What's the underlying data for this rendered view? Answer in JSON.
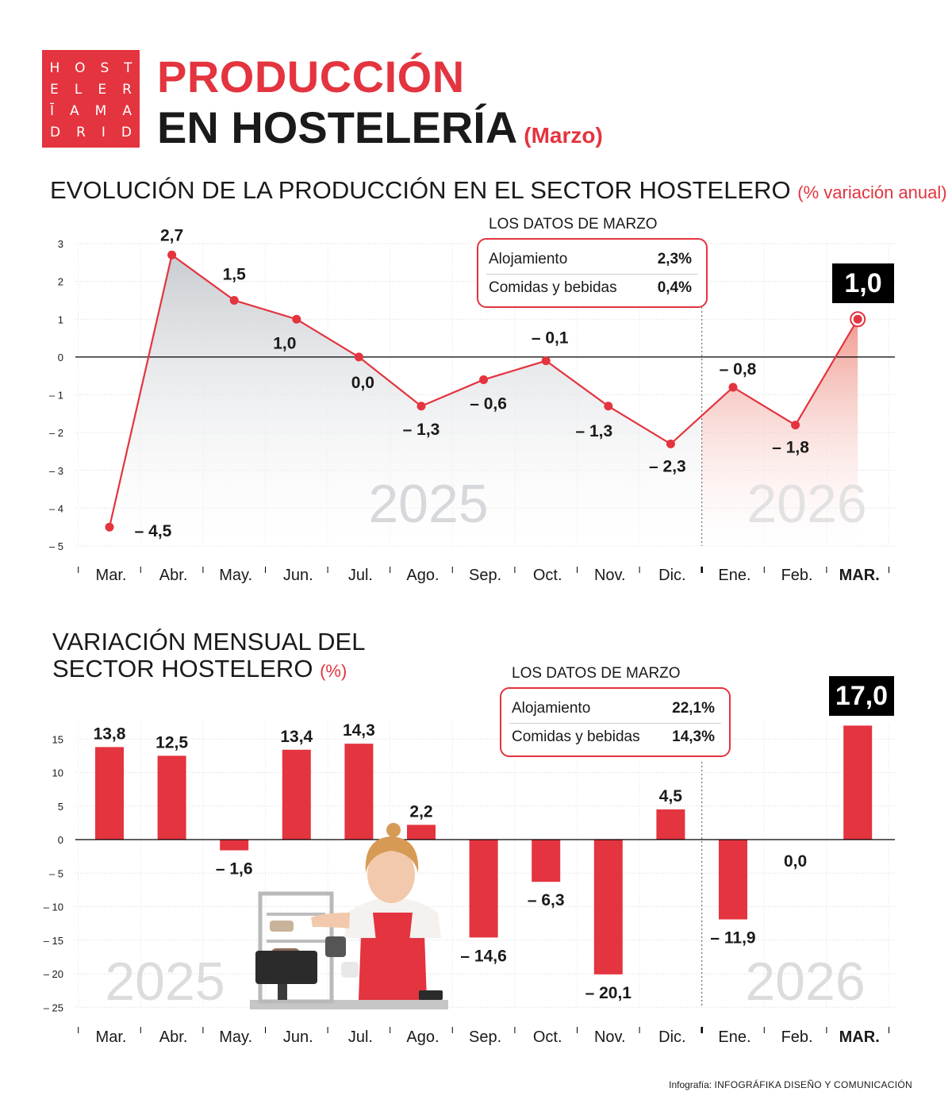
{
  "logo": {
    "rows": [
      [
        "H",
        "O",
        "S",
        "T"
      ],
      [
        "E",
        "L",
        "E",
        "R"
      ],
      [
        "Ī",
        "A",
        "M",
        "A"
      ],
      [
        "D",
        "R",
        "I",
        "D"
      ]
    ]
  },
  "header": {
    "title_line1": "PRODUCCIÓN",
    "title_line2": "EN HOSTELERÍA",
    "title_sub": "(Marzo)"
  },
  "section1": {
    "title": "EVOLUCIÓN DE LA PRODUCCIÓN EN EL SECTOR HOSTELERO",
    "unit": "(% variación anual)",
    "databox": {
      "title": "LOS DATOS DE MARZO",
      "rows": [
        {
          "label": "Alojamiento",
          "value": "2,3%"
        },
        {
          "label": "Comidas y bebidas",
          "value": "0,4%"
        }
      ]
    },
    "big_value": "1,0"
  },
  "section2": {
    "title_line1": "VARIACIÓN MENSUAL DEL",
    "title_line2": "SECTOR HOSTELERO",
    "unit": "(%)",
    "databox": {
      "title": "LOS DATOS DE MARZO",
      "rows": [
        {
          "label": "Alojamiento",
          "value": "22,1%"
        },
        {
          "label": "Comidas y bebidas",
          "value": "14,3%"
        }
      ]
    },
    "big_value": "17,0"
  },
  "credit": {
    "prefix": "Infografía:",
    "name": "INFOGRÁFIKA DISEÑO Y COMUNICACIÓN"
  },
  "colors": {
    "accent": "#e3343f",
    "area_2025": "#d4d7db",
    "area_2026": "#f3b3ab",
    "black": "#000000"
  },
  "chart_data": [
    {
      "type": "area",
      "title": "EVOLUCIÓN DE LA PRODUCCIÓN EN EL SECTOR HOSTELERO",
      "categories": [
        "Mar.",
        "Abr.",
        "May.",
        "Jun.",
        "Jul.",
        "Ago.",
        "Sep.",
        "Oct.",
        "Nov.",
        "Dic.",
        "Ene.",
        "Feb.",
        "MAR."
      ],
      "values": [
        -4.5,
        2.7,
        1.5,
        1.0,
        0.0,
        -1.3,
        -0.6,
        -0.1,
        -1.3,
        -2.3,
        -0.8,
        -1.8,
        1.0
      ],
      "labels": [
        "– 4,5",
        "2,7",
        "1,5",
        "1,0",
        "0,0",
        "– 1,3",
        "– 0,6",
        "– 0,1",
        "– 1,3",
        "– 2,3",
        "– 0,8",
        "– 1,8",
        ""
      ],
      "yticks": [
        3,
        2,
        1,
        0,
        -1,
        -2,
        -3,
        -4,
        -5
      ],
      "ytick_labels": [
        "3",
        "2",
        "1",
        "0",
        "– 1",
        "– 2",
        "– 3",
        "– 4",
        "– 5"
      ],
      "ylim": [
        -5,
        3
      ],
      "year_labels": [
        "2025",
        "2026"
      ],
      "year_split_after": "Dic.",
      "grid": true
    },
    {
      "type": "bar",
      "title": "VARIACIÓN MENSUAL DEL SECTOR HOSTELERO",
      "categories": [
        "Mar.",
        "Abr.",
        "May.",
        "Jun.",
        "Jul.",
        "Ago.",
        "Sep.",
        "Oct.",
        "Nov.",
        "Dic.",
        "Ene.",
        "Feb.",
        "MAR."
      ],
      "values": [
        13.8,
        12.5,
        -1.6,
        13.4,
        14.3,
        2.2,
        -14.6,
        -6.3,
        -20.1,
        4.5,
        -11.9,
        0.0,
        17.0
      ],
      "labels": [
        "13,8",
        "12,5",
        "– 1,6",
        "13,4",
        "14,3",
        "2,2",
        "– 14,6",
        "– 6,3",
        "– 20,1",
        "4,5",
        "– 11,9",
        "0,0",
        ""
      ],
      "yticks": [
        15,
        10,
        5,
        0,
        -5,
        -10,
        -15,
        -20,
        -25
      ],
      "ytick_labels": [
        "15",
        "10",
        "5",
        "0",
        "– 5",
        "– 10",
        "– 15",
        "– 20",
        "– 25"
      ],
      "ylim": [
        -25,
        17
      ],
      "year_labels": [
        "2025",
        "2026"
      ],
      "year_split_after": "Dic.",
      "grid": true
    }
  ]
}
